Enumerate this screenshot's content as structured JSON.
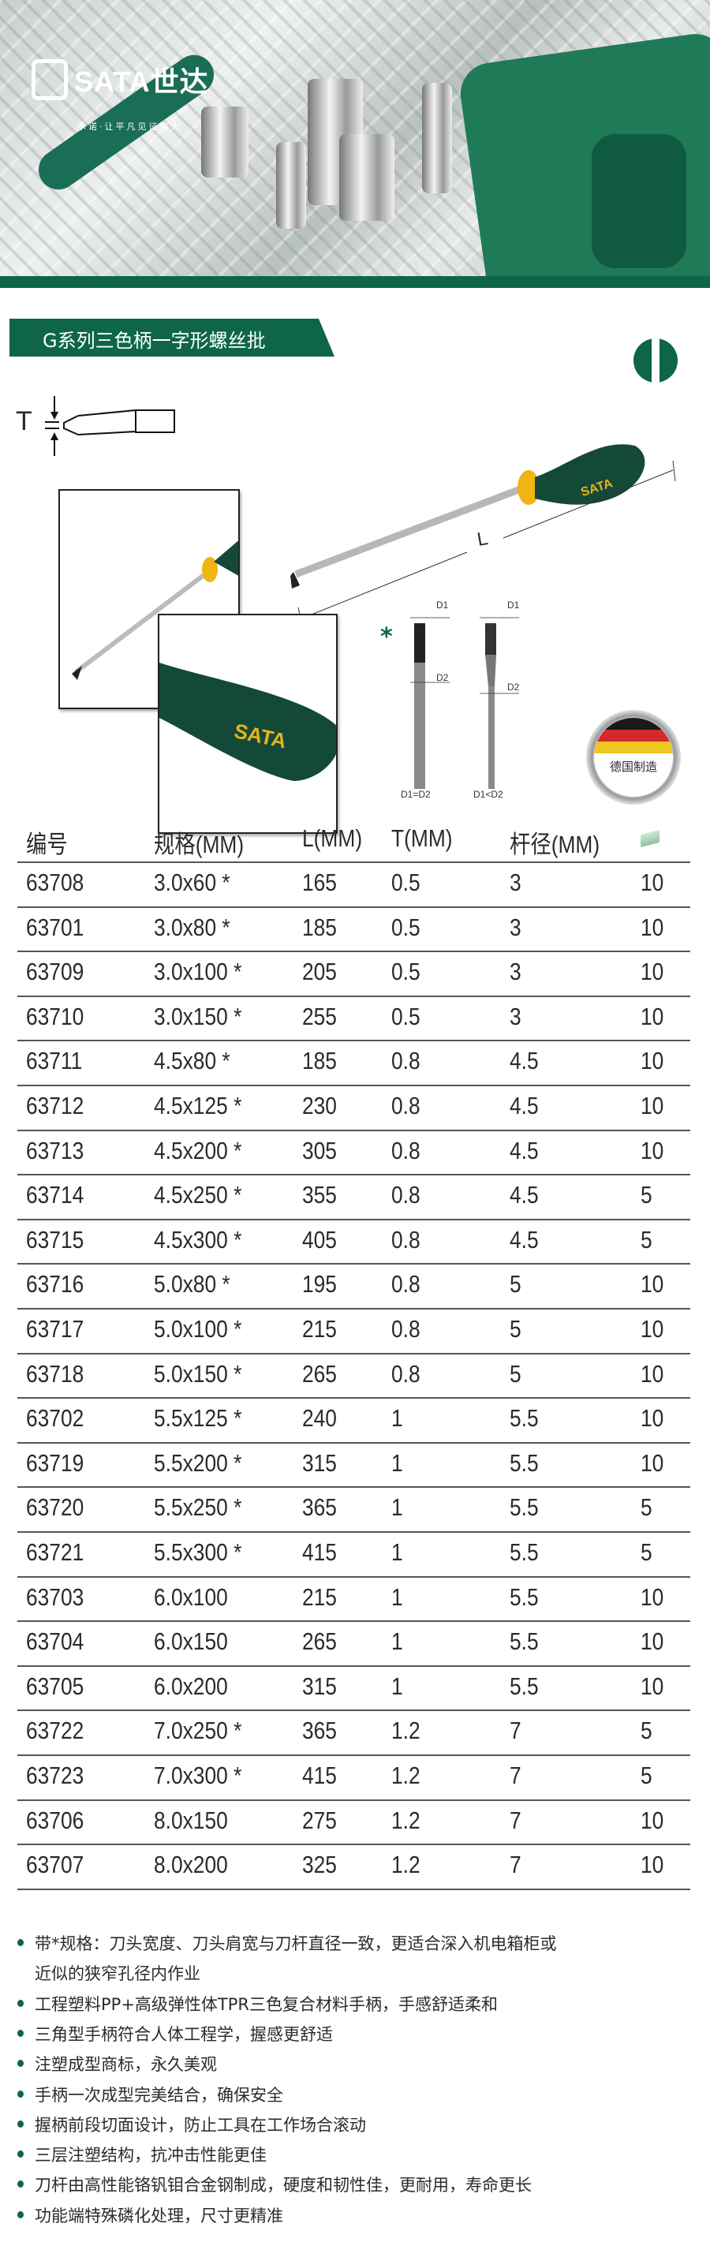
{
  "brand": {
    "logo_text": "SATA世达",
    "slogan": "承诺·让平凡见证伟大",
    "color": "#0e6647"
  },
  "title": "G系列三色柄一字形螺丝批",
  "icons": {
    "tip_type": "slotted-tip-icon",
    "made_in": "germany-flag-badge",
    "package": "box-icon"
  },
  "diagram": {
    "t_label": "T",
    "l_label": "L",
    "d1": "D1",
    "d2": "D2",
    "variant1": "D1=D2",
    "variant2": "D1<D2",
    "star": "*"
  },
  "badge": {
    "text": "德国制造"
  },
  "table": {
    "headers": [
      "编号",
      "规格(MM)",
      "L(MM)",
      "T(MM)",
      "杆径(MM)",
      ""
    ],
    "rows": [
      [
        "63708",
        "3.0x60 *",
        "165",
        "0.5",
        "3",
        "10"
      ],
      [
        "63701",
        "3.0x80 *",
        "185",
        "0.5",
        "3",
        "10"
      ],
      [
        "63709",
        "3.0x100 *",
        "205",
        "0.5",
        "3",
        "10"
      ],
      [
        "63710",
        "3.0x150 *",
        "255",
        "0.5",
        "3",
        "10"
      ],
      [
        "63711",
        "4.5x80 *",
        "185",
        "0.8",
        "4.5",
        "10"
      ],
      [
        "63712",
        "4.5x125 *",
        "230",
        "0.8",
        "4.5",
        "10"
      ],
      [
        "63713",
        "4.5x200 *",
        "305",
        "0.8",
        "4.5",
        "10"
      ],
      [
        "63714",
        "4.5x250 *",
        "355",
        "0.8",
        "4.5",
        "5"
      ],
      [
        "63715",
        "4.5x300 *",
        "405",
        "0.8",
        "4.5",
        "5"
      ],
      [
        "63716",
        "5.0x80 *",
        "195",
        "0.8",
        "5",
        "10"
      ],
      [
        "63717",
        "5.0x100 *",
        "215",
        "0.8",
        "5",
        "10"
      ],
      [
        "63718",
        "5.0x150 *",
        "265",
        "0.8",
        "5",
        "10"
      ],
      [
        "63702",
        "5.5x125 *",
        "240",
        "1",
        "5.5",
        "10"
      ],
      [
        "63719",
        "5.5x200 *",
        "315",
        "1",
        "5.5",
        "10"
      ],
      [
        "63720",
        "5.5x250 *",
        "365",
        "1",
        "5.5",
        "5"
      ],
      [
        "63721",
        "5.5x300 *",
        "415",
        "1",
        "5.5",
        "5"
      ],
      [
        "63703",
        "6.0x100",
        "215",
        "1",
        "5.5",
        "10"
      ],
      [
        "63704",
        "6.0x150",
        "265",
        "1",
        "5.5",
        "10"
      ],
      [
        "63705",
        "6.0x200",
        "315",
        "1",
        "5.5",
        "10"
      ],
      [
        "63722",
        "7.0x250 *",
        "365",
        "1.2",
        "7",
        "5"
      ],
      [
        "63723",
        "7.0x300 *",
        "415",
        "1.2",
        "7",
        "5"
      ],
      [
        "63706",
        "8.0x150",
        "275",
        "1.2",
        "7",
        "10"
      ],
      [
        "63707",
        "8.0x200",
        "325",
        "1.2",
        "7",
        "10"
      ]
    ]
  },
  "features": [
    [
      "带*规格：刀头宽度、刀头肩宽与刀杆直径一致，更适合深入机电箱柜或",
      "近似的狭窄孔径内作业"
    ],
    [
      "工程塑料PP+高级弹性体TPR三色复合材料手柄，手感舒适柔和"
    ],
    [
      "三角型手柄符合人体工程学，握感更舒适"
    ],
    [
      "注塑成型商标，永久美观"
    ],
    [
      "手柄一次成型完美结合，确保安全"
    ],
    [
      "握柄前段切面设计，防止工具在工作场合滚动"
    ],
    [
      "三层注塑结构，抗冲击性能更佳"
    ],
    [
      "刀杆由高性能铬钒钼合金钢制成，硬度和韧性佳，更耐用，寿命更长"
    ],
    [
      "功能端特殊磷化处理，尺寸更精准"
    ]
  ]
}
